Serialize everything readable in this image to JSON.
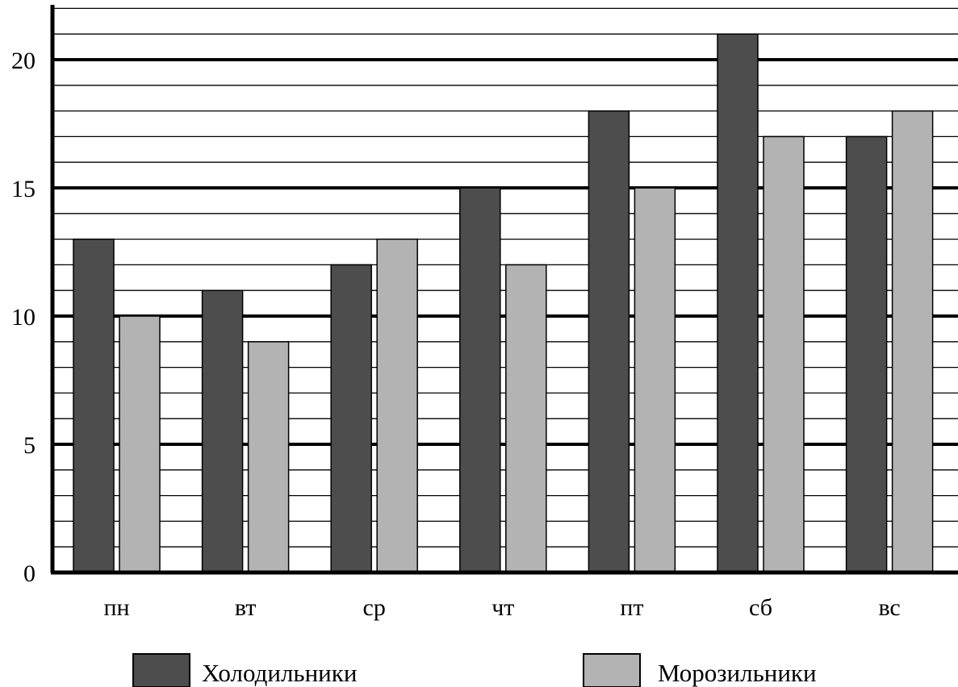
{
  "chart_data": {
    "type": "bar",
    "categories": [
      "пн",
      "вт",
      "ср",
      "чт",
      "пт",
      "сб",
      "вс"
    ],
    "series": [
      {
        "name": "Холодильники",
        "color": "#4d4d4d",
        "values": [
          13,
          11,
          12,
          15,
          18,
          21,
          17
        ]
      },
      {
        "name": "Морозильники",
        "color": "#b3b3b3",
        "values": [
          10,
          9,
          13,
          12,
          15,
          17,
          18
        ]
      }
    ],
    "yticks": [
      "0",
      "5",
      "10",
      "15",
      "20"
    ],
    "ylim": [
      0,
      22
    ],
    "minor_grid_step": 1,
    "major_grid_step": 5,
    "grid": true,
    "legend_position": "bottom"
  }
}
